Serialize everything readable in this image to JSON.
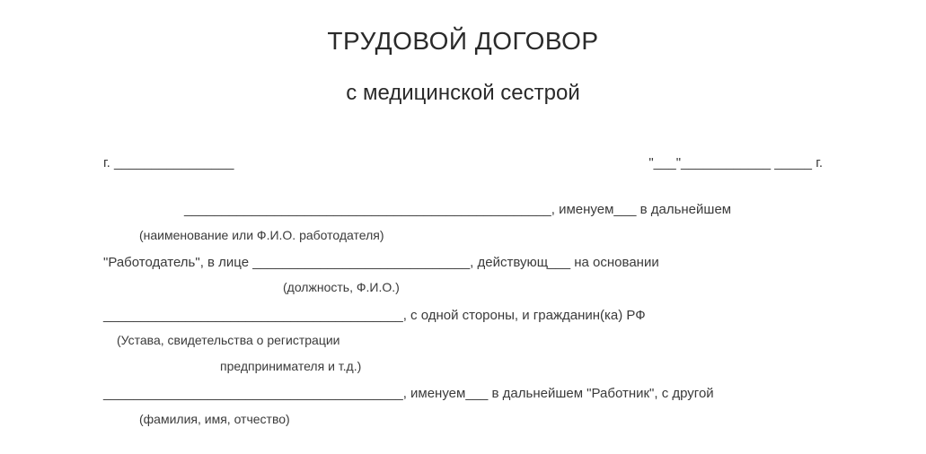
{
  "document": {
    "title": "ТРУДОВОЙ ДОГОВОР",
    "subtitle": "с медицинской сестрой",
    "city_label": "г. ________________",
    "date_label": "\"___\"____________ _____ г.",
    "line1": "_________________________________________________, именуем___ в дальнейшем",
    "hint1": "(наименование или Ф.И.О. работодателя)",
    "line2": "\"Работодатель\", в лице _____________________________, действующ___ на основании",
    "hint2": "(должность, Ф.И.О.)",
    "line3": "________________________________________, с одной стороны, и гражданин(ка) РФ",
    "hint3a": "(Устава, свидетельства о регистрации",
    "hint3b": "предпринимателя и т.д.)",
    "line4": "________________________________________, именуем___ в дальнейшем \"Работник\", с другой",
    "hint4": "(фамилия, имя, отчество)",
    "text_color": "#3a3a3a",
    "title_color": "#2a2a2a",
    "background_color": "#ffffff",
    "title_fontsize": 28,
    "subtitle_fontsize": 24,
    "body_fontsize": 15,
    "hint_fontsize": 14
  }
}
